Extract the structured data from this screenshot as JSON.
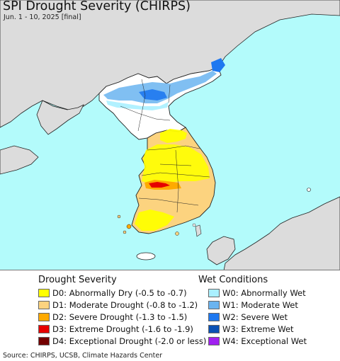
{
  "header": {
    "title": "SPI Drought Severity (CHIRPS)",
    "subtitle": "Jun. 1 - 10, 2025 [final]"
  },
  "colors": {
    "sea": "#b3fbfb",
    "land_outside": "#dcdcdc",
    "land_neutral": "#ffffff",
    "border": "#222222",
    "D0": "#ffff00",
    "D1": "#fcd37f",
    "D2": "#ffaa00",
    "D3": "#e60000",
    "D4": "#730000",
    "W0": "#aaf0ff",
    "W1": "#6ab4f0",
    "W2": "#1e78f0",
    "W3": "#0a50b4",
    "W4": "#a020f0"
  },
  "legend": {
    "drought_heading": "Drought Severity",
    "drought_items": [
      {
        "code": "D0",
        "label": "D0: Abnormally Dry (-0.5 to -0.7)",
        "color": "#ffff00"
      },
      {
        "code": "D1",
        "label": "D1: Moderate Drought (-0.8 to -1.2)",
        "color": "#fcd37f"
      },
      {
        "code": "D2",
        "label": "D2: Severe Drought (-1.3 to -1.5)",
        "color": "#ffaa00"
      },
      {
        "code": "D3",
        "label": "D3: Extreme Drought (-1.6 to -1.9)",
        "color": "#e60000"
      },
      {
        "code": "D4",
        "label": "D4: Exceptional Drought (-2.0 or less)",
        "color": "#730000"
      }
    ],
    "wet_heading": "Wet Conditions",
    "wet_items": [
      {
        "code": "W0",
        "label": "W0: Abnormally Wet",
        "color": "#aaf0ff"
      },
      {
        "code": "W1",
        "label": "W1: Moderate Wet",
        "color": "#6ab4f0"
      },
      {
        "code": "W2",
        "label": "W2: Severe Wet",
        "color": "#1e78f0"
      },
      {
        "code": "W3",
        "label": "W3: Extreme Wet",
        "color": "#0a50b4"
      },
      {
        "code": "W4",
        "label": "W4: Exceptional Wet",
        "color": "#a020f0"
      }
    ]
  },
  "footer": {
    "source": "Source: CHIRPS, UCSB, Climate Hazards Center"
  }
}
